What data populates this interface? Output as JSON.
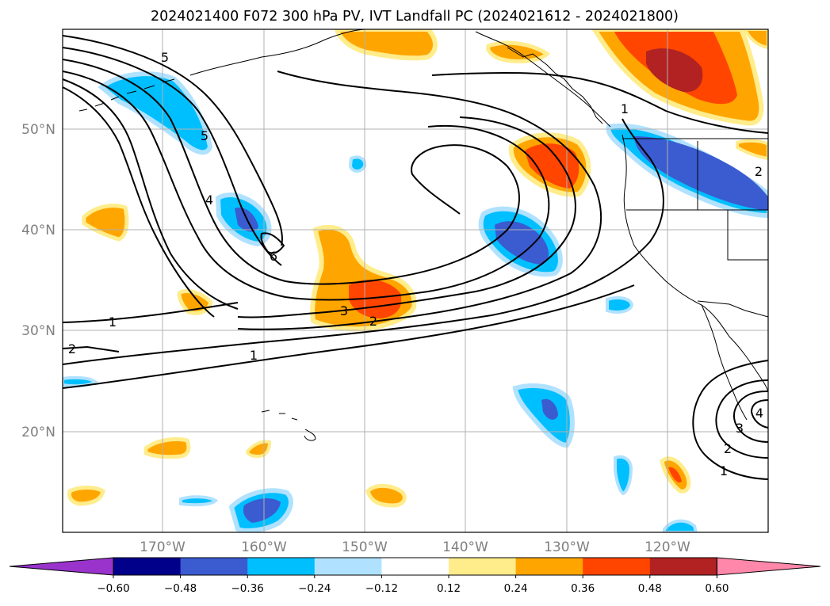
{
  "title": "2024021400 F072 300 hPa PV, IVT Landfall PC (2024021612 - 2024021800)",
  "lat_labels": [
    "50°N",
    "40°N",
    "30°N",
    "20°N"
  ],
  "lon_labels": [
    "170°W",
    "160°W",
    "150°W",
    "140°W",
    "130°W",
    "120°W"
  ],
  "colorbar": {
    "tick_labels": [
      "−0.60",
      "−0.48",
      "−0.36",
      "−0.24",
      "−0.12",
      "0.12",
      "0.24",
      "0.36",
      "0.48",
      "0.60"
    ],
    "colors": [
      "#9933cc",
      "#00008b",
      "#3b5bd0",
      "#00bfff",
      "#b0e2ff",
      "#ffffff",
      "#ffec8b",
      "#ffa500",
      "#ff4500",
      "#b22222",
      "#ff88aa"
    ]
  },
  "contour_labels": [
    "5",
    "5",
    "4",
    "6",
    "1",
    "1",
    "1",
    "2",
    "3",
    "2",
    "2",
    "4",
    "3",
    "2",
    "1"
  ],
  "fill_colors": {
    "neg_light": "#b0e2ff",
    "neg_mid": "#00bfff",
    "neg_strong": "#3b5bd0",
    "pos_light": "#ffec8b",
    "pos_mid": "#ffa500",
    "pos_strong": "#ff4500",
    "pos_max": "#b22222"
  }
}
